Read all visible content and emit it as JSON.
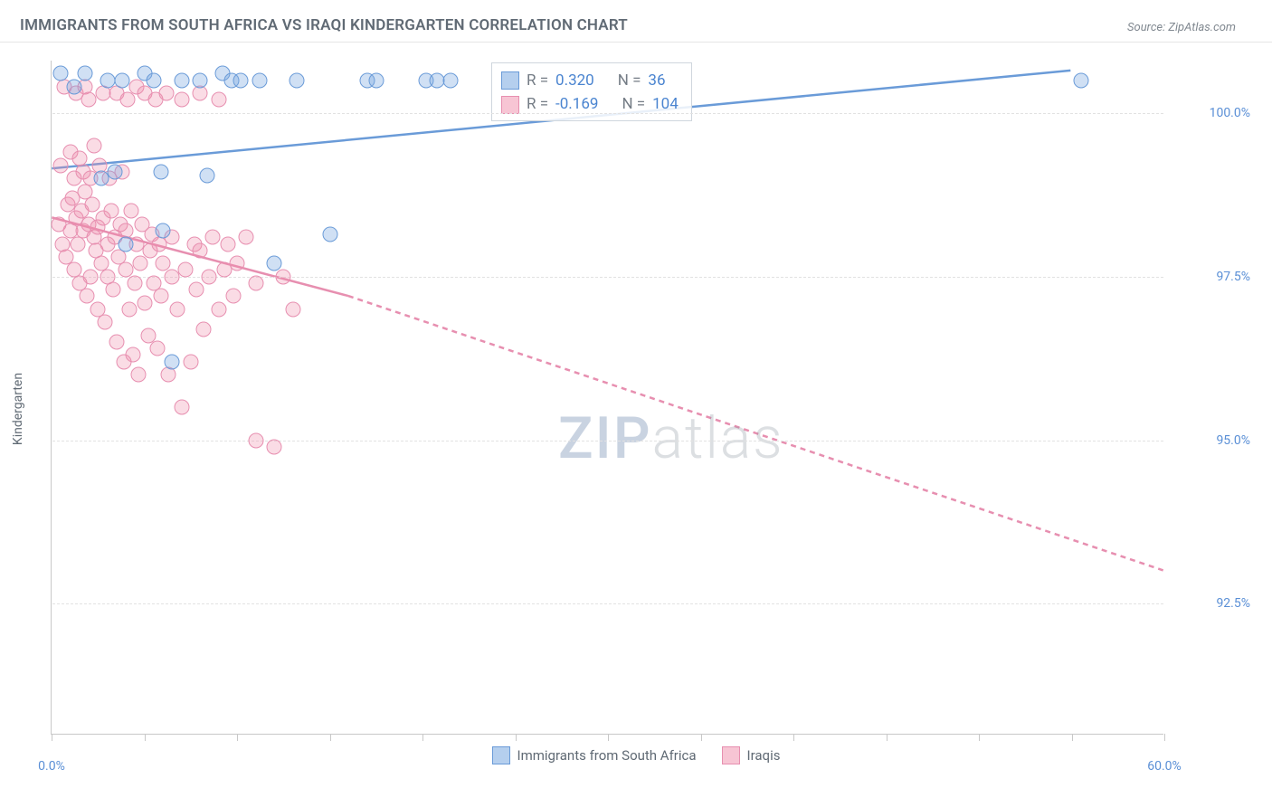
{
  "header": {
    "title": "IMMIGRANTS FROM SOUTH AFRICA VS IRAQI KINDERGARTEN CORRELATION CHART",
    "source": "Source: ZipAtlas.com"
  },
  "chart": {
    "type": "scatter",
    "yaxis_title": "Kindergarten",
    "xlim": [
      0,
      60
    ],
    "ylim": [
      90.5,
      100.8
    ],
    "xtick_positions": [
      0,
      5,
      10,
      15,
      20,
      25,
      30,
      35,
      40,
      45,
      50,
      55,
      60
    ],
    "xtick_labels": {
      "0": "0.0%",
      "60": "60.0%"
    },
    "ytick_positions": [
      92.5,
      95.0,
      97.5,
      100.0
    ],
    "ytick_labels": [
      "92.5%",
      "95.0%",
      "97.5%",
      "100.0%"
    ],
    "colors": {
      "blue_fill": "rgba(121,167,224,0.35)",
      "blue_stroke": "#6a9bd8",
      "pink_fill": "rgba(240,140,170,0.30)",
      "pink_stroke": "#e78fb0",
      "grid": "#e2e2e2",
      "axis": "#c8c8c8",
      "tick_label": "#5a8fd6",
      "text": "#606a74"
    },
    "series_blue": {
      "name": "Immigrants from South Africa",
      "R": "0.320",
      "N": "36",
      "trend": {
        "x1": 0,
        "y1": 99.15,
        "x2": 55,
        "y2": 100.65,
        "dashed": false
      },
      "points": [
        [
          0.5,
          100.6
        ],
        [
          1.2,
          100.4
        ],
        [
          1.8,
          100.6
        ],
        [
          2.7,
          99.0
        ],
        [
          3.0,
          100.5
        ],
        [
          3.4,
          99.1
        ],
        [
          3.8,
          100.5
        ],
        [
          4.0,
          98.0
        ],
        [
          5.0,
          100.6
        ],
        [
          5.5,
          100.5
        ],
        [
          5.9,
          99.1
        ],
        [
          6.0,
          98.2
        ],
        [
          6.5,
          96.2
        ],
        [
          7.0,
          100.5
        ],
        [
          8.0,
          100.5
        ],
        [
          8.4,
          99.05
        ],
        [
          9.2,
          100.6
        ],
        [
          9.7,
          100.5
        ],
        [
          10.2,
          100.5
        ],
        [
          11.2,
          100.5
        ],
        [
          12.0,
          97.7
        ],
        [
          13.2,
          100.5
        ],
        [
          15.0,
          98.15
        ],
        [
          17.0,
          100.5
        ],
        [
          17.5,
          100.5
        ],
        [
          20.2,
          100.5
        ],
        [
          20.8,
          100.5
        ],
        [
          21.5,
          100.5
        ],
        [
          55.5,
          100.5
        ]
      ]
    },
    "series_pink": {
      "name": "Iraqis",
      "R": "-0.169",
      "N": "104",
      "trend_solid": {
        "x1": 0,
        "y1": 98.4,
        "x2": 16,
        "y2": 97.2
      },
      "trend_dashed": {
        "x1": 16,
        "y1": 97.2,
        "x2": 60,
        "y2": 93.0
      },
      "points": [
        [
          0.4,
          98.3
        ],
        [
          0.5,
          99.2
        ],
        [
          0.6,
          98.0
        ],
        [
          0.7,
          100.4
        ],
        [
          0.8,
          97.8
        ],
        [
          0.9,
          98.6
        ],
        [
          1.0,
          99.4
        ],
        [
          1.0,
          98.2
        ],
        [
          1.1,
          98.7
        ],
        [
          1.2,
          99.0
        ],
        [
          1.2,
          97.6
        ],
        [
          1.3,
          100.3
        ],
        [
          1.3,
          98.4
        ],
        [
          1.4,
          98.0
        ],
        [
          1.5,
          99.3
        ],
        [
          1.5,
          97.4
        ],
        [
          1.6,
          98.5
        ],
        [
          1.7,
          99.1
        ],
        [
          1.7,
          98.2
        ],
        [
          1.8,
          98.8
        ],
        [
          1.8,
          100.4
        ],
        [
          1.9,
          97.2
        ],
        [
          2.0,
          98.3
        ],
        [
          2.0,
          100.2
        ],
        [
          2.1,
          99.0
        ],
        [
          2.1,
          97.5
        ],
        [
          2.2,
          98.6
        ],
        [
          2.3,
          98.1
        ],
        [
          2.3,
          99.5
        ],
        [
          2.4,
          97.9
        ],
        [
          2.5,
          97.0
        ],
        [
          2.5,
          98.25
        ],
        [
          2.6,
          99.2
        ],
        [
          2.7,
          97.7
        ],
        [
          2.8,
          98.4
        ],
        [
          2.8,
          100.3
        ],
        [
          2.9,
          96.8
        ],
        [
          3.0,
          98.0
        ],
        [
          3.0,
          97.5
        ],
        [
          3.1,
          99.0
        ],
        [
          3.2,
          98.5
        ],
        [
          3.3,
          97.3
        ],
        [
          3.4,
          98.1
        ],
        [
          3.5,
          100.3
        ],
        [
          3.5,
          96.5
        ],
        [
          3.6,
          97.8
        ],
        [
          3.7,
          98.3
        ],
        [
          3.8,
          99.1
        ],
        [
          3.9,
          96.2
        ],
        [
          4.0,
          97.6
        ],
        [
          4.0,
          98.2
        ],
        [
          4.1,
          100.2
        ],
        [
          4.2,
          97.0
        ],
        [
          4.3,
          98.5
        ],
        [
          4.4,
          96.3
        ],
        [
          4.5,
          97.4
        ],
        [
          4.6,
          100.4
        ],
        [
          4.6,
          98.0
        ],
        [
          4.7,
          96.0
        ],
        [
          4.8,
          97.7
        ],
        [
          4.9,
          98.3
        ],
        [
          5.0,
          97.1
        ],
        [
          5.0,
          100.3
        ],
        [
          5.2,
          96.6
        ],
        [
          5.3,
          97.9
        ],
        [
          5.4,
          98.15
        ],
        [
          5.5,
          97.4
        ],
        [
          5.6,
          100.2
        ],
        [
          5.7,
          96.4
        ],
        [
          5.8,
          98.0
        ],
        [
          5.9,
          97.2
        ],
        [
          6.0,
          97.7
        ],
        [
          6.2,
          100.3
        ],
        [
          6.3,
          96.0
        ],
        [
          6.5,
          97.5
        ],
        [
          6.5,
          98.1
        ],
        [
          6.8,
          97.0
        ],
        [
          7.0,
          95.5
        ],
        [
          7.0,
          100.2
        ],
        [
          7.2,
          97.6
        ],
        [
          7.5,
          96.2
        ],
        [
          7.7,
          98.0
        ],
        [
          7.8,
          97.3
        ],
        [
          8.0,
          97.9
        ],
        [
          8.0,
          100.3
        ],
        [
          8.2,
          96.7
        ],
        [
          8.5,
          97.5
        ],
        [
          8.7,
          98.1
        ],
        [
          9.0,
          97.0
        ],
        [
          9.0,
          100.2
        ],
        [
          9.3,
          97.6
        ],
        [
          9.5,
          98.0
        ],
        [
          9.8,
          97.2
        ],
        [
          10.0,
          97.7
        ],
        [
          10.5,
          98.1
        ],
        [
          11.0,
          97.4
        ],
        [
          11.0,
          95.0
        ],
        [
          12.0,
          94.9
        ],
        [
          12.5,
          97.5
        ],
        [
          13.0,
          97.0
        ]
      ]
    },
    "legend_box": {
      "rows": [
        {
          "swatch": "blue",
          "r_label": "R = ",
          "r_val": "0.320",
          "n_label": "N = ",
          "n_val": "36"
        },
        {
          "swatch": "pink",
          "r_label": "R = ",
          "r_val": "-0.169",
          "n_label": "N = ",
          "n_val": "104"
        }
      ]
    },
    "bottom_legend": [
      {
        "swatch": "blue",
        "label": "Immigrants from South Africa"
      },
      {
        "swatch": "pink",
        "label": "Iraqis"
      }
    ],
    "watermark": {
      "bold": "ZIP",
      "light": "atlas"
    }
  }
}
